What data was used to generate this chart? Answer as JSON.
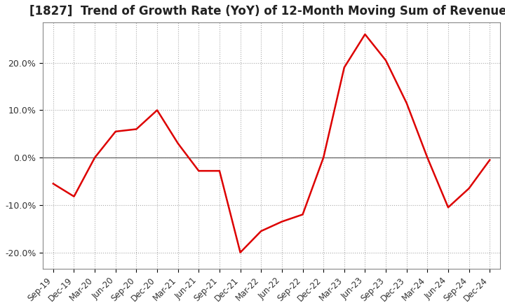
{
  "title": "[1827]  Trend of Growth Rate (YoY) of 12-Month Moving Sum of Revenues",
  "title_fontsize": 12,
  "line_color": "#dd0000",
  "background_color": "#ffffff",
  "plot_bg_color": "#ffffff",
  "grid_color": "#aaaaaa",
  "ylim": [
    -0.235,
    0.285
  ],
  "yticks": [
    -0.2,
    -0.1,
    0.0,
    0.1,
    0.2
  ],
  "ytick_labels": [
    "-20.0%",
    "-10.0%",
    "0.0%",
    "10.0%",
    "20.0%"
  ],
  "x_labels": [
    "Sep-19",
    "Dec-19",
    "Mar-20",
    "Jun-20",
    "Sep-20",
    "Dec-20",
    "Mar-21",
    "Jun-21",
    "Sep-21",
    "Dec-21",
    "Mar-22",
    "Jun-22",
    "Sep-22",
    "Dec-22",
    "Mar-23",
    "Jun-23",
    "Sep-23",
    "Dec-23",
    "Mar-24",
    "Jun-24",
    "Sep-24",
    "Dec-24"
  ],
  "values": [
    -0.055,
    -0.082,
    0.0,
    0.055,
    0.06,
    0.1,
    0.03,
    -0.028,
    -0.028,
    -0.2,
    -0.155,
    -0.135,
    -0.12,
    0.0,
    0.19,
    0.26,
    0.205,
    0.115,
    0.0,
    -0.105,
    -0.065,
    -0.005
  ]
}
